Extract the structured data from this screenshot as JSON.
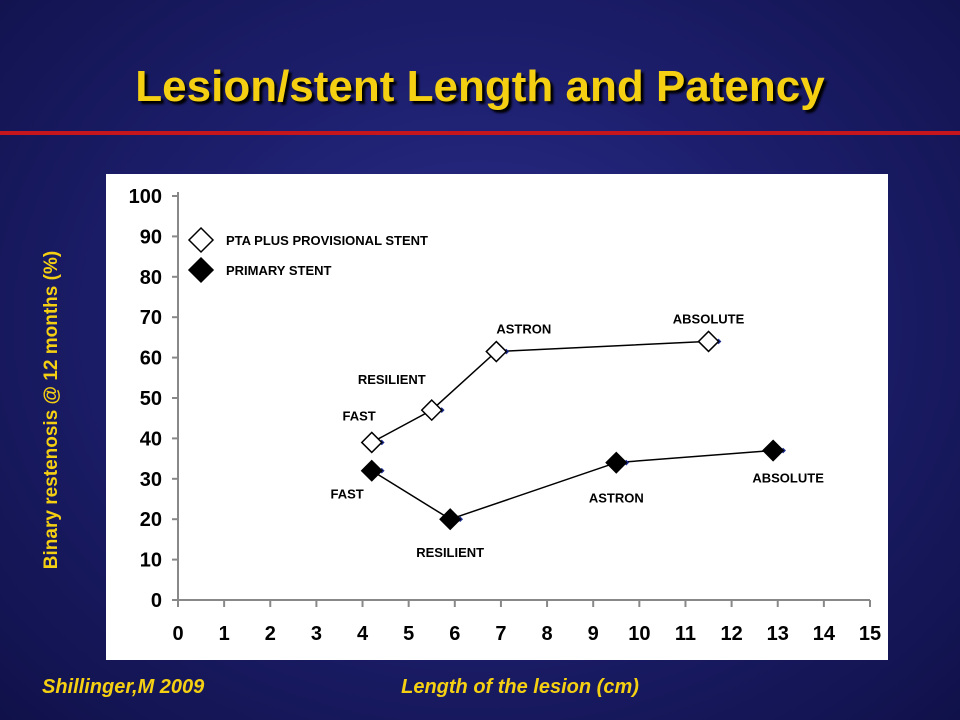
{
  "slide": {
    "title": "Lesion/stent Length and Patency",
    "citation": "Shillinger,M 2009"
  },
  "chart_data": {
    "type": "scatter",
    "xlabel": "Length of the lesion (cm)",
    "ylabel": "Binary restenosis @ 12 months (%)",
    "xlim": [
      0,
      15
    ],
    "ylim": [
      0,
      100
    ],
    "x_ticks": [
      "0",
      "1",
      "2",
      "3",
      "4",
      "5",
      "6",
      "7",
      "8",
      "9",
      "10",
      "11",
      "12",
      "13",
      "14",
      "15"
    ],
    "y_ticks": [
      "0",
      "10",
      "20",
      "30",
      "40",
      "50",
      "60",
      "70",
      "80",
      "90",
      "100"
    ],
    "grid": false,
    "legend_position": "top-left",
    "series": [
      {
        "name": "PTA PLUS PROVISIONAL STENT",
        "marker": "open-diamond",
        "points": [
          {
            "label": "FAST",
            "x": 4.2,
            "y": 39
          },
          {
            "label": "RESILIENT",
            "x": 5.5,
            "y": 47
          },
          {
            "label": "ASTRON",
            "x": 6.9,
            "y": 61.5
          },
          {
            "label": "ABSOLUTE",
            "x": 11.5,
            "y": 64
          }
        ]
      },
      {
        "name": "PRIMARY STENT",
        "marker": "filled-diamond",
        "points": [
          {
            "label": "FAST",
            "x": 4.2,
            "y": 32
          },
          {
            "label": "RESILIENT",
            "x": 5.9,
            "y": 20
          },
          {
            "label": "ASTRON",
            "x": 9.5,
            "y": 34
          },
          {
            "label": "ABSOLUTE",
            "x": 12.9,
            "y": 37
          }
        ]
      }
    ]
  }
}
